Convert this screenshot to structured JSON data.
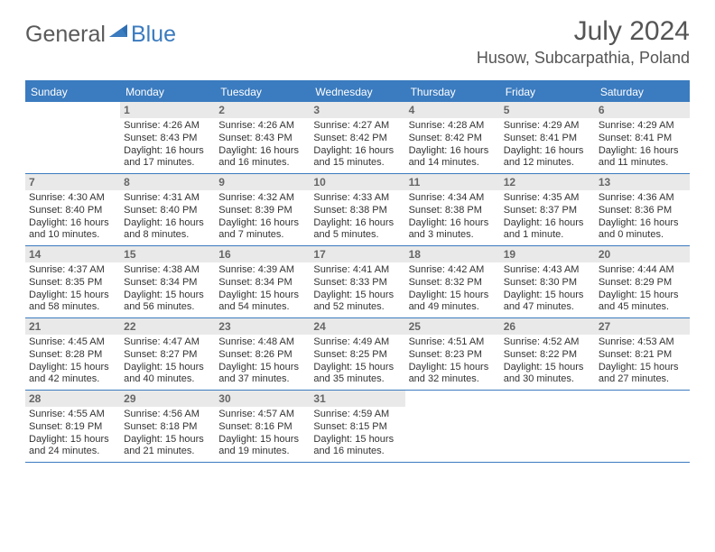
{
  "logo": {
    "general": "General",
    "blue": "Blue"
  },
  "title": "July 2024",
  "location": "Husow, Subcarpathia, Poland",
  "colors": {
    "accent": "#3b7bbf",
    "dayhead_bg": "#3b7bbf",
    "daynum_bg": "#e9e9e9",
    "text": "#333333"
  },
  "day_headers": [
    "Sunday",
    "Monday",
    "Tuesday",
    "Wednesday",
    "Thursday",
    "Friday",
    "Saturday"
  ],
  "weeks": [
    [
      {
        "n": "",
        "sr": "",
        "ss": "",
        "dl": ""
      },
      {
        "n": "1",
        "sr": "4:26 AM",
        "ss": "8:43 PM",
        "dl": "16 hours and 17 minutes."
      },
      {
        "n": "2",
        "sr": "4:26 AM",
        "ss": "8:43 PM",
        "dl": "16 hours and 16 minutes."
      },
      {
        "n": "3",
        "sr": "4:27 AM",
        "ss": "8:42 PM",
        "dl": "16 hours and 15 minutes."
      },
      {
        "n": "4",
        "sr": "4:28 AM",
        "ss": "8:42 PM",
        "dl": "16 hours and 14 minutes."
      },
      {
        "n": "5",
        "sr": "4:29 AM",
        "ss": "8:41 PM",
        "dl": "16 hours and 12 minutes."
      },
      {
        "n": "6",
        "sr": "4:29 AM",
        "ss": "8:41 PM",
        "dl": "16 hours and 11 minutes."
      }
    ],
    [
      {
        "n": "7",
        "sr": "4:30 AM",
        "ss": "8:40 PM",
        "dl": "16 hours and 10 minutes."
      },
      {
        "n": "8",
        "sr": "4:31 AM",
        "ss": "8:40 PM",
        "dl": "16 hours and 8 minutes."
      },
      {
        "n": "9",
        "sr": "4:32 AM",
        "ss": "8:39 PM",
        "dl": "16 hours and 7 minutes."
      },
      {
        "n": "10",
        "sr": "4:33 AM",
        "ss": "8:38 PM",
        "dl": "16 hours and 5 minutes."
      },
      {
        "n": "11",
        "sr": "4:34 AM",
        "ss": "8:38 PM",
        "dl": "16 hours and 3 minutes."
      },
      {
        "n": "12",
        "sr": "4:35 AM",
        "ss": "8:37 PM",
        "dl": "16 hours and 1 minute."
      },
      {
        "n": "13",
        "sr": "4:36 AM",
        "ss": "8:36 PM",
        "dl": "16 hours and 0 minutes."
      }
    ],
    [
      {
        "n": "14",
        "sr": "4:37 AM",
        "ss": "8:35 PM",
        "dl": "15 hours and 58 minutes."
      },
      {
        "n": "15",
        "sr": "4:38 AM",
        "ss": "8:34 PM",
        "dl": "15 hours and 56 minutes."
      },
      {
        "n": "16",
        "sr": "4:39 AM",
        "ss": "8:34 PM",
        "dl": "15 hours and 54 minutes."
      },
      {
        "n": "17",
        "sr": "4:41 AM",
        "ss": "8:33 PM",
        "dl": "15 hours and 52 minutes."
      },
      {
        "n": "18",
        "sr": "4:42 AM",
        "ss": "8:32 PM",
        "dl": "15 hours and 49 minutes."
      },
      {
        "n": "19",
        "sr": "4:43 AM",
        "ss": "8:30 PM",
        "dl": "15 hours and 47 minutes."
      },
      {
        "n": "20",
        "sr": "4:44 AM",
        "ss": "8:29 PM",
        "dl": "15 hours and 45 minutes."
      }
    ],
    [
      {
        "n": "21",
        "sr": "4:45 AM",
        "ss": "8:28 PM",
        "dl": "15 hours and 42 minutes."
      },
      {
        "n": "22",
        "sr": "4:47 AM",
        "ss": "8:27 PM",
        "dl": "15 hours and 40 minutes."
      },
      {
        "n": "23",
        "sr": "4:48 AM",
        "ss": "8:26 PM",
        "dl": "15 hours and 37 minutes."
      },
      {
        "n": "24",
        "sr": "4:49 AM",
        "ss": "8:25 PM",
        "dl": "15 hours and 35 minutes."
      },
      {
        "n": "25",
        "sr": "4:51 AM",
        "ss": "8:23 PM",
        "dl": "15 hours and 32 minutes."
      },
      {
        "n": "26",
        "sr": "4:52 AM",
        "ss": "8:22 PM",
        "dl": "15 hours and 30 minutes."
      },
      {
        "n": "27",
        "sr": "4:53 AM",
        "ss": "8:21 PM",
        "dl": "15 hours and 27 minutes."
      }
    ],
    [
      {
        "n": "28",
        "sr": "4:55 AM",
        "ss": "8:19 PM",
        "dl": "15 hours and 24 minutes."
      },
      {
        "n": "29",
        "sr": "4:56 AM",
        "ss": "8:18 PM",
        "dl": "15 hours and 21 minutes."
      },
      {
        "n": "30",
        "sr": "4:57 AM",
        "ss": "8:16 PM",
        "dl": "15 hours and 19 minutes."
      },
      {
        "n": "31",
        "sr": "4:59 AM",
        "ss": "8:15 PM",
        "dl": "15 hours and 16 minutes."
      },
      {
        "n": "",
        "sr": "",
        "ss": "",
        "dl": ""
      },
      {
        "n": "",
        "sr": "",
        "ss": "",
        "dl": ""
      },
      {
        "n": "",
        "sr": "",
        "ss": "",
        "dl": ""
      }
    ]
  ],
  "labels": {
    "sunrise": "Sunrise:",
    "sunset": "Sunset:",
    "daylight": "Daylight:"
  }
}
